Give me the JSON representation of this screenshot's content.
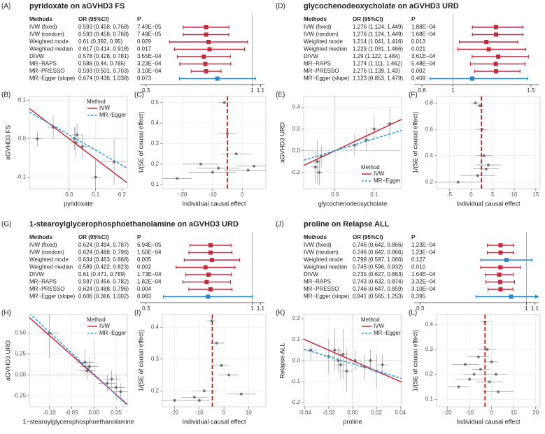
{
  "chart_data": [
    {
      "type": "forest",
      "panel": "(A)",
      "title": "pyridoxate on aGVHD3 FS",
      "columns": [
        "Methods",
        "OR (95%CI)",
        "P"
      ],
      "categories": [
        "IVW (fixed)",
        "IVW (random)",
        "Weighted mode",
        "Weighted median",
        "DIVW",
        "MR−RAPS",
        "MR−PRESSO",
        "MR−Egger (slope)"
      ],
      "values": [
        0.593,
        0.593,
        0.61,
        0.617,
        0.578,
        0.588,
        0.593,
        0.674
      ],
      "ci_lower": [
        0.458,
        0.458,
        0.392,
        0.414,
        0.428,
        0.44,
        0.501,
        0.438
      ],
      "ci_upper": [
        0.768,
        0.768,
        0.95,
        0.918,
        0.781,
        0.785,
        0.703,
        1.038
      ],
      "value_labels": [
        "0.593 (0.458, 0.768)",
        "0.593 (0.458, 0.768)",
        "0.61 (0.392, 0.95)",
        "0.617 (0.414, 0.918)",
        "0.578 (0.428, 0.781)",
        "0.588 (0.44, 0.785)",
        "0.593 (0.501, 0.703)",
        "0.674 (0.438, 1.038)"
      ],
      "p_labels": [
        "7.49E−05",
        "7.49E−05",
        "0.029",
        "0.017",
        "3.55E−04",
        "3.23E−04",
        "3.10E−04",
        "0.073"
      ],
      "colors": [
        "#c8283c",
        "#c8283c",
        "#c8283c",
        "#c8283c",
        "#c8283c",
        "#c8283c",
        "#c8283c",
        "#2a86c4"
      ],
      "log": true,
      "xlim": [
        0.28,
        1.15
      ],
      "xticks": [
        0.3,
        1,
        1.1
      ],
      "reference": 1
    },
    {
      "type": "scatter",
      "panel": "(B)",
      "xlabel": "pyridoxate",
      "ylabel": "aGVHD3 FS",
      "x": [
        -0.12,
        -0.06,
        0.02,
        0.025,
        0.03,
        0.05,
        0.1,
        0.17
      ],
      "values": [
        0.0,
        0.03,
        0.0,
        -0.01,
        0.01,
        -0.02,
        -0.1,
        -0.06
      ],
      "xerr": [
        0.02,
        0.02,
        0.02,
        0.02,
        0.02,
        0.02,
        0.02,
        0.05
      ],
      "yerr": [
        0.02,
        0.03,
        0.03,
        0.04,
        0.03,
        0.03,
        0.05,
        0.06
      ],
      "xlim": [
        -0.15,
        0.22
      ],
      "ylim": [
        -0.13,
        0.11
      ],
      "xticks": [
        {
          "value": 0,
          "label": "0.0"
        },
        0.1,
        0.2
      ],
      "yticks": [
        -0.1,
        {
          "value": 0,
          "label": "0.0"
        },
        0.1
      ],
      "legend_title": "Method",
      "legend": "upper right",
      "lines": [
        {
          "name": "IVW",
          "color": "#c8283c",
          "dash": false,
          "slope": -0.523,
          "intercept": 0
        },
        {
          "name": "MR−Egger",
          "color": "#2a9fd8",
          "dash": true,
          "slope": -0.395,
          "intercept": 0.01
        }
      ]
    },
    {
      "type": "funnel",
      "panel": "(C)",
      "xlabel": "Individual causal effect",
      "ylabel": "1/(SE of causal effect)",
      "x": [
        -22,
        -14,
        -10,
        -8,
        -6,
        -5,
        -2,
        2,
        4
      ],
      "values": [
        0.13,
        0.2,
        0.16,
        0.18,
        0.5,
        0.35,
        0.25,
        0.17,
        0.19
      ],
      "xerr": [
        5,
        6,
        8,
        7,
        2,
        3,
        5,
        8,
        6
      ],
      "xlim": [
        -27,
        8
      ],
      "ylim": [
        0.08,
        0.53
      ],
      "xticks": [
        -20,
        -10,
        0
      ],
      "yticks": [
        0.1,
        0.2,
        0.3,
        0.4,
        0.5
      ],
      "reference": -5
    },
    {
      "type": "forest",
      "panel": "(D)",
      "title": "glycochenodeoxycholate on aGVHD3 URD",
      "columns": [
        "Methods",
        "OR (95%CI)",
        "P"
      ],
      "categories": [
        "IVW (fixed)",
        "IVW (random)",
        "Weighted mode",
        "Weighted median",
        "DIVW",
        "MR−RAPS",
        "MR−PRESSO",
        "MR−Egger (slope)"
      ],
      "values": [
        1.276,
        1.276,
        1.214,
        1.229,
        1.29,
        1.274,
        1.276,
        1.123
      ],
      "ci_lower": [
        1.124,
        1.124,
        1.041,
        1.031,
        1.122,
        1.111,
        1.139,
        0.853
      ],
      "ci_upper": [
        1.449,
        1.449,
        1.416,
        1.466,
        1.484,
        1.462,
        1.43,
        1.479
      ],
      "value_labels": [
        "1.276 (1.124, 1.449)",
        "1.276 (1.124, 1.449)",
        "1.214 (1.041, 1.416)",
        "1.229 (1.031, 1.466)",
        "1.29 (1.122, 1.484)",
        "1.274 (1.111, 1.462)",
        "1.276 (1.139, 1.43)",
        "1.123 (0.853, 1.479)"
      ],
      "p_labels": [
        "1.88E−04",
        "1.68E−04",
        "0.013",
        "0.021",
        "3.61E−04",
        "5.48E−04",
        "0.002",
        "0.409"
      ],
      "colors": [
        "#c8283c",
        "#c8283c",
        "#c8283c",
        "#c8283c",
        "#c8283c",
        "#c8283c",
        "#c8283c",
        "#2a86c4"
      ],
      "log": false,
      "xlim": [
        0.75,
        1.55
      ],
      "xticks": [
        0.8,
        1,
        1.5
      ],
      "reference": 1
    },
    {
      "type": "scatter",
      "panel": "(E)",
      "xlabel": "glycochenodeoxycholate",
      "ylabel": "aGVHD3 URD",
      "x": [
        -0.05,
        -0.045,
        -0.04,
        -0.035,
        0.05,
        0.08,
        0.1,
        0.14
      ],
      "values": [
        -0.15,
        -0.1,
        -0.2,
        -0.05,
        0.05,
        0.1,
        0.2,
        0.25
      ],
      "xerr": [
        0.01,
        0.01,
        0.01,
        0.01,
        0.01,
        0.01,
        0.01,
        0.01
      ],
      "yerr": [
        0.15,
        0.2,
        0.12,
        0.1,
        0.1,
        0.1,
        0.1,
        0.15
      ],
      "xlim": [
        -0.08,
        0.17
      ],
      "ylim": [
        -0.35,
        0.5
      ],
      "xticks": [
        {
          "value": 0,
          "label": "0.0"
        },
        0.1
      ],
      "yticks": [
        -0.2,
        {
          "value": 0,
          "label": "0.0"
        },
        0.2,
        0.4
      ],
      "legend_title": "Method",
      "legend": "lower right",
      "lines": [
        {
          "name": "IVW",
          "color": "#c8283c",
          "dash": false,
          "slope": 1.7,
          "intercept": 0
        },
        {
          "name": "MR−Egger",
          "color": "#2a9fd8",
          "dash": true,
          "slope": 1.1,
          "intercept": 0
        }
      ]
    },
    {
      "type": "funnel",
      "panel": "(F)",
      "xlabel": "Individual causal effect",
      "ylabel": "1/(SE of causal effect)",
      "x": [
        1,
        2,
        2.5,
        3,
        3.5,
        4,
        1.5,
        -3
      ],
      "values": [
        0.8,
        0.78,
        0.6,
        0.4,
        0.3,
        0.33,
        0.25,
        0.2
      ],
      "xerr": [
        1,
        1,
        1.5,
        2,
        3,
        3,
        4,
        5
      ],
      "xlim": [
        -8,
        16
      ],
      "ylim": [
        0.15,
        0.85
      ],
      "xticks": [
        -5,
        0,
        5,
        10,
        15
      ],
      "yticks": [
        0.2,
        0.4,
        0.6,
        0.8
      ],
      "reference": 2.4
    },
    {
      "type": "forest",
      "panel": "(G)",
      "title": "1-stearoylglycerophosphoethanolamine on aGVHD3 URD",
      "columns": [
        "Methods",
        "OR (95%CI)",
        "P"
      ],
      "categories": [
        "IVW (fixed)",
        "IVW (random)",
        "Weighted mode",
        "Weighted median",
        "DIVW",
        "MR−RAPS",
        "MR−PRESSO",
        "MR−Egger (slope)"
      ],
      "values": [
        0.624,
        0.624,
        0.634,
        0.589,
        0.61,
        0.597,
        0.624,
        0.606
      ],
      "ci_lower": [
        0.494,
        0.488,
        0.463,
        0.422,
        0.471,
        0.456,
        0.488,
        0.366
      ],
      "ci_upper": [
        0.787,
        0.796,
        0.868,
        0.823,
        0.789,
        0.782,
        0.796,
        1.002
      ],
      "value_labels": [
        "0.624 (0.494, 0.787)",
        "0.624 (0.488, 0.796)",
        "0.634 (0.463, 0.868)",
        "0.589 (0.422, 0.823)",
        "0.61 (0.471, 0.789)",
        "0.597 (0.456, 0.782)",
        "0.624 (0.488, 0.796)",
        "0.606 (0.366, 1.002)"
      ],
      "p_labels": [
        "6.94E−05",
        "1.50E−04",
        "0.005",
        "0.002",
        "1.73E−04",
        "1.82E−04",
        "0.004",
        "0.083"
      ],
      "colors": [
        "#c8283c",
        "#c8283c",
        "#c8283c",
        "#c8283c",
        "#c8283c",
        "#c8283c",
        "#c8283c",
        "#2a86c4"
      ],
      "log": true,
      "xlim": [
        0.28,
        1.15
      ],
      "xticks": [
        0.3,
        1,
        1.1
      ],
      "reference": 1
    },
    {
      "type": "scatter",
      "panel": "(H)",
      "xlabel": "1−stearoylglycerophosphoethanolamine",
      "ylabel": "aGVHD3 URD",
      "x": [
        -0.1,
        -0.02,
        -0.015,
        -0.01,
        0.03,
        0.04,
        0.05,
        0.06
      ],
      "values": [
        0.5,
        0.15,
        0.05,
        0.1,
        -0.1,
        -0.05,
        -0.15,
        -0.2
      ],
      "xerr": [
        0.02,
        0.02,
        0.02,
        0.02,
        0.02,
        0.02,
        0.02,
        0.02
      ],
      "yerr": [
        0.3,
        0.15,
        0.1,
        0.1,
        0.1,
        0.1,
        0.15,
        0.1
      ],
      "xlim": [
        -0.145,
        0.075
      ],
      "ylim": [
        -0.38,
        0.72
      ],
      "xticks": [
        {
          "value": -0.1,
          "label": "-0.10"
        },
        -0.05,
        {
          "value": 0,
          "label": "0.00"
        },
        0.05
      ],
      "yticks": [
        -0.25,
        {
          "value": 0,
          "label": "0.00"
        },
        0.25,
        {
          "value": 0.5,
          "label": "0.50"
        }
      ],
      "legend_title": "Method",
      "legend": "upper right",
      "lines": [
        {
          "name": "IVW",
          "color": "#c8283c",
          "dash": false,
          "slope": -4.7,
          "intercept": 0
        },
        {
          "name": "MR−Egger",
          "color": "#2a9fd8",
          "dash": true,
          "slope": -5.0,
          "intercept": 0.01
        }
      ]
    },
    {
      "type": "funnel",
      "panel": "(I)",
      "xlabel": "Individual causal effect",
      "ylabel": "1/(SE of causal effect)",
      "x": [
        -20,
        -12,
        -10,
        -8,
        -5,
        -3,
        -1,
        2,
        7
      ],
      "values": [
        0.17,
        0.18,
        0.17,
        0.2,
        0.42,
        0.35,
        0.28,
        0.25,
        0.19
      ],
      "xerr": [
        6,
        5,
        4,
        5,
        2,
        3,
        3,
        4,
        6
      ],
      "xlim": [
        -25,
        17
      ],
      "ylim": [
        0.15,
        0.44
      ],
      "xticks": [
        -20,
        -10,
        0,
        10
      ],
      "yticks": [
        0.2,
        0.3,
        0.4
      ],
      "reference": -4.7
    },
    {
      "type": "forest",
      "panel": "(J)",
      "title": "proline on Relapse ALL",
      "columns": [
        "Methods",
        "OR (95%CI)",
        "P"
      ],
      "categories": [
        "IVW (fixed)",
        "IVW (random)",
        "Weighted mode",
        "Weighted median",
        "DIVW",
        "MR−RAPS",
        "MR−PRESSO",
        "MR−Egger (slope)"
      ],
      "values": [
        0.746,
        0.746,
        0.798,
        0.745,
        0.735,
        0.743,
        0.746,
        0.841
      ],
      "ci_lower": [
        0.642,
        0.642,
        0.597,
        0.596,
        0.627,
        0.632,
        0.647,
        0.565
      ],
      "ci_upper": [
        0.866,
        0.866,
        1.066,
        0.932,
        0.863,
        0.874,
        0.859,
        1.253
      ],
      "value_labels": [
        "0.746 (0.642, 0.866)",
        "0.746 (0.642, 0.866)",
        "0.798 (0.597, 1.066)",
        "0.745 (0.596, 0.932)",
        "0.735 (0.627, 0.863)",
        "0.743 (0.632, 0.874)",
        "0.746 (0.647, 0.859)",
        "0.841 (0.565, 1.253)"
      ],
      "p_labels": [
        "1.23E−04",
        "1.23E−04",
        "0.127",
        "0.010",
        "1.64E−04",
        "3.32E−04",
        "3.10E−04",
        "0.395"
      ],
      "colors": [
        "#c8283c",
        "#c8283c",
        "#2a86c4",
        "#c8283c",
        "#c8283c",
        "#c8283c",
        "#c8283c",
        "#2a86c4"
      ],
      "log": true,
      "xlim": [
        0.28,
        1.15
      ],
      "xticks": [
        0.3,
        1,
        1.1
      ],
      "reference": 1
    },
    {
      "type": "scatter",
      "panel": "(K)",
      "xlabel": "proline",
      "ylabel": "Relapse ALL",
      "x": [
        -0.035,
        -0.02,
        -0.015,
        -0.012,
        -0.01,
        -0.008,
        -0.005,
        0.002,
        0.01,
        0.015,
        0.02,
        0.025
      ],
      "values": [
        0.05,
        0.02,
        0.05,
        0.0,
        -0.02,
        0.03,
        -0.05,
        0.0,
        -0.03,
        0.0,
        -0.05,
        -0.02
      ],
      "xerr": [
        0.005,
        0.005,
        0.005,
        0.005,
        0.005,
        0.005,
        0.005,
        0.005,
        0.005,
        0.005,
        0.005,
        0.005
      ],
      "yerr": [
        0.05,
        0.08,
        0.1,
        0.06,
        0.07,
        0.12,
        0.1,
        0.05,
        0.06,
        0.05,
        0.08,
        0.05
      ],
      "xlim": [
        -0.041,
        0.041
      ],
      "ylim": [
        -0.22,
        0.22
      ],
      "xticks": [
        -0.04,
        -0.02,
        {
          "value": 0,
          "label": "0.00"
        },
        0.02,
        0.04
      ],
      "yticks": [
        -0.2,
        -0.1,
        {
          "value": 0,
          "label": "0.0"
        },
        0.1,
        0.2
      ],
      "legend_title": "Method",
      "legend": "upper right",
      "lines": [
        {
          "name": "IVW",
          "color": "#c8283c",
          "dash": false,
          "slope": -2.5,
          "intercept": 0
        },
        {
          "name": "MR−Egger",
          "color": "#2a9fd8",
          "dash": true,
          "slope": -1.7,
          "intercept": -0.015
        }
      ]
    },
    {
      "type": "funnel",
      "panel": "(L)",
      "xlabel": "Individual causal effect",
      "ylabel": "1/(SE of causal effect)",
      "x": [
        -15,
        -10,
        -8,
        -5,
        -3,
        -2,
        0,
        2,
        -1,
        -6,
        3,
        -12
      ],
      "values": [
        0.15,
        0.18,
        0.2,
        0.22,
        0.41,
        0.3,
        0.25,
        0.2,
        0.17,
        0.27,
        0.13,
        0.24
      ],
      "xerr": [
        5,
        6,
        5,
        4,
        2,
        4,
        3,
        5,
        6,
        5,
        7,
        6
      ],
      "xlim": [
        -25,
        22
      ],
      "ylim": [
        0.07,
        0.44
      ],
      "xticks": [
        -20,
        -10,
        0,
        10,
        20
      ],
      "yticks": [
        0.1,
        0.2,
        0.3,
        0.4
      ],
      "reference": -3
    }
  ]
}
